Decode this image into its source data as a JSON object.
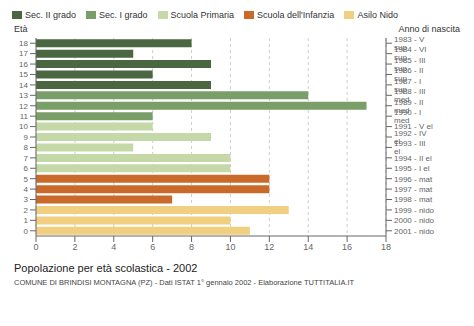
{
  "chart_data": {
    "type": "bar",
    "orientation": "horizontal",
    "title": "Popolazione per età scolastica - 2002",
    "subtitle": "COMUNE DI BRINDISI MONTAGNA (PZ) - Dati ISTAT 1° gennaio 2002 - Elaborazione TUTTITALIA.IT",
    "ylabel": "Età",
    "y2label": "Anno di nascita",
    "categories": [
      18,
      17,
      16,
      15,
      14,
      13,
      12,
      11,
      10,
      9,
      8,
      7,
      6,
      5,
      4,
      3,
      2,
      1,
      0
    ],
    "y2_categories": [
      "1983 - V sup",
      "1984 - VI sup",
      "1985 - III sup",
      "1986 - II sup",
      "1987 - I sup",
      "1988 - III med",
      "1989 - II med",
      "1990 - I med",
      "1991 - V el",
      "1992 - IV el",
      "1993 - III el",
      "1994 - II el",
      "1995 - I el",
      "1996 - mat",
      "1997 - mat",
      "1998 - mat",
      "1999 - nido",
      "2000 - nido",
      "2001 - nido"
    ],
    "values": [
      8,
      5,
      9,
      6,
      9,
      14,
      17,
      6,
      6,
      9,
      5,
      10,
      10,
      12,
      12,
      7,
      13,
      10,
      11
    ],
    "colors": [
      "#4a6741",
      "#4a6741",
      "#4a6741",
      "#4a6741",
      "#4a6741",
      "#7a9e68",
      "#7a9e68",
      "#7a9e68",
      "#c5d9a8",
      "#c5d9a8",
      "#c5d9a8",
      "#c5d9a8",
      "#c5d9a8",
      "#c96a2a",
      "#c96a2a",
      "#c96a2a",
      "#f0d080",
      "#f0d080",
      "#f0d080"
    ],
    "xlim": [
      0,
      18
    ],
    "xticks": [
      0,
      2,
      4,
      6,
      8,
      10,
      12,
      14,
      16,
      18
    ],
    "grid": true,
    "legend": "top",
    "legend_entries": [
      {
        "name": "Sec. II grado",
        "color": "#4a6741"
      },
      {
        "name": "Sec. I grado",
        "color": "#7a9e68"
      },
      {
        "name": "Scuola Primaria",
        "color": "#c5d9a8"
      },
      {
        "name": "Scuola dell'Infanzia",
        "color": "#c96a2a"
      },
      {
        "name": "Asilo Nido",
        "color": "#f0d080"
      }
    ]
  }
}
